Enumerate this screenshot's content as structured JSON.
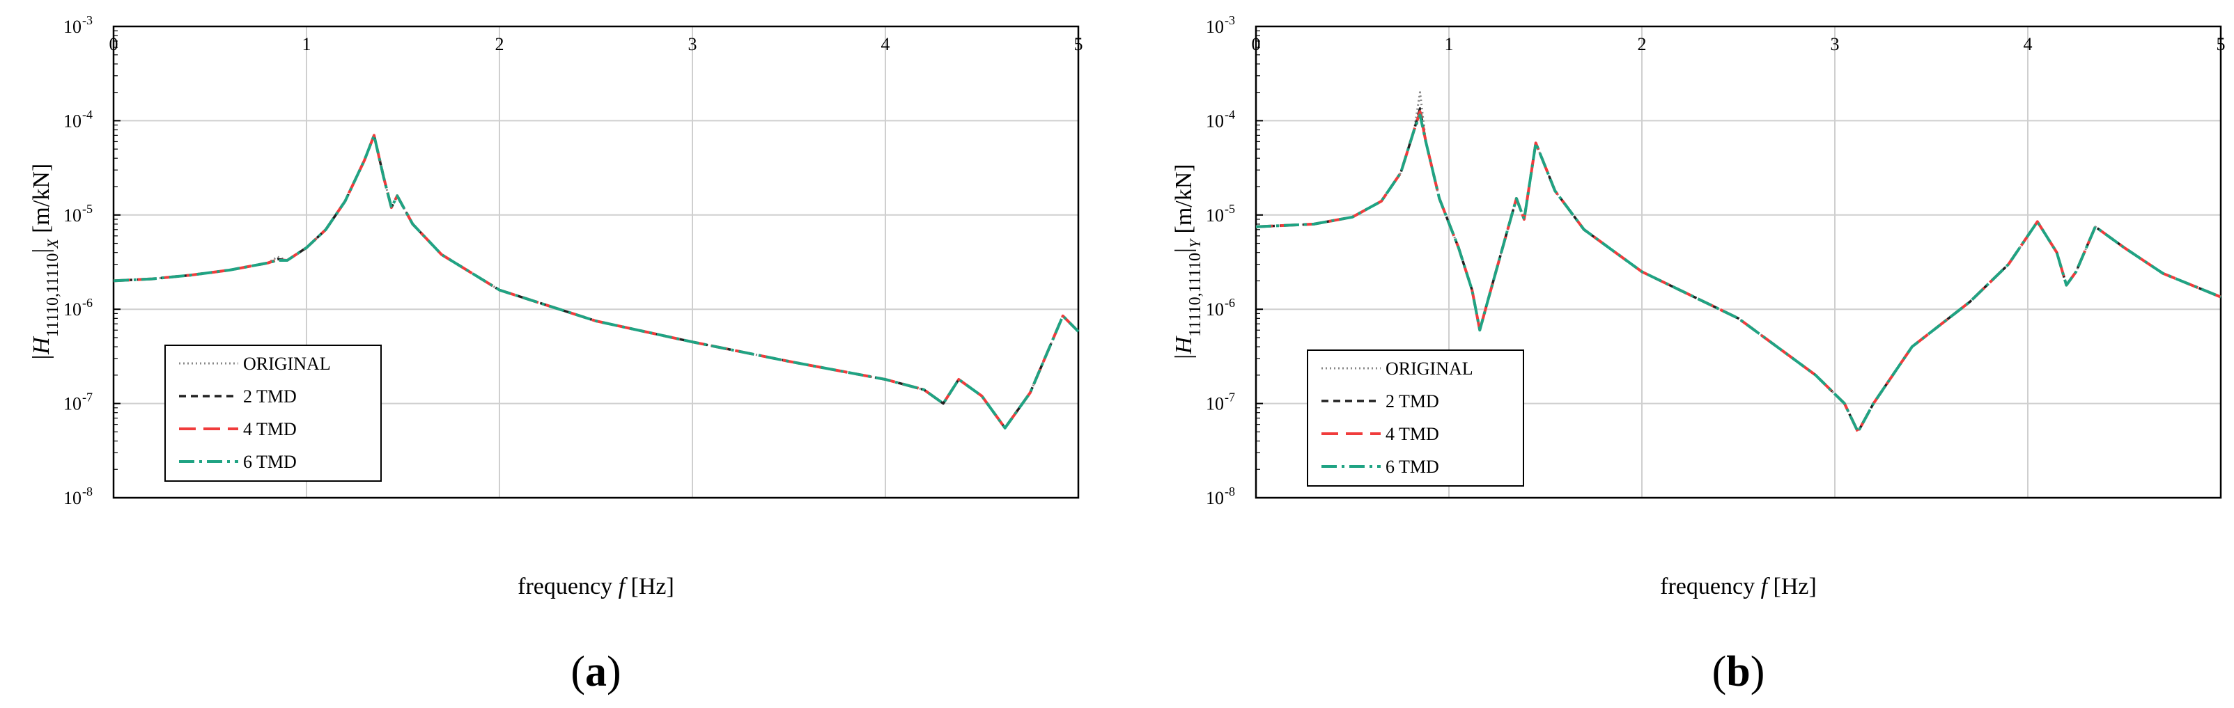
{
  "chart_data": [
    {
      "type": "line",
      "panel_label": "(a)",
      "panel_letter": "a",
      "ylabel_main": "|H",
      "ylabel_sub": "11110,11110",
      "ylabel_suffix": "|",
      "ylabel_dir": "X",
      "ylabel_unit": "[m/kN]",
      "xlabel": "frequency f [Hz]",
      "xlabel_prefix": "frequency ",
      "xlabel_var": "f",
      "xlabel_unit": " [Hz]",
      "xlim": [
        0,
        5
      ],
      "ylim": [
        1e-08,
        0.001
      ],
      "yscale": "log",
      "grid": true,
      "x_ticks": [
        "0",
        "1",
        "2",
        "3",
        "4",
        "5"
      ],
      "y_ticks": [
        {
          "base": "10",
          "exp": "-3"
        },
        {
          "base": "10",
          "exp": "-4"
        },
        {
          "base": "10",
          "exp": "-5"
        },
        {
          "base": "10",
          "exp": "-6"
        },
        {
          "base": "10",
          "exp": "-7"
        },
        {
          "base": "10",
          "exp": "-8"
        }
      ],
      "legend_position": "bottom-left",
      "series": [
        {
          "name": "ORIGINAL",
          "color": "#888888",
          "style": "dotted",
          "x": [
            0,
            0.2,
            0.4,
            0.6,
            0.8,
            0.85,
            0.9,
            1.0,
            1.1,
            1.2,
            1.3,
            1.35,
            1.4,
            1.44,
            1.47,
            1.55,
            1.7,
            2.0,
            2.5,
            3.0,
            3.5,
            4.0,
            4.2,
            4.3,
            4.38,
            4.5,
            4.62,
            4.75,
            4.92,
            5.0
          ],
          "y": [
            2e-06,
            2.1e-06,
            2.3e-06,
            2.6e-06,
            3.1e-06,
            3.6e-06,
            3.3e-06,
            4.5e-06,
            7e-06,
            1.4e-05,
            3.8e-05,
            7e-05,
            2.5e-05,
            1.2e-05,
            1.6e-05,
            8e-06,
            3.8e-06,
            1.6e-06,
            7.5e-07,
            4.5e-07,
            2.8e-07,
            1.8e-07,
            1.4e-07,
            1e-07,
            1.8e-07,
            1.2e-07,
            5.5e-08,
            1.3e-07,
            8.5e-07,
            5.8e-07
          ]
        },
        {
          "name": "2 TMD",
          "color": "#222222",
          "style": "dashed",
          "x": [
            0,
            0.2,
            0.4,
            0.6,
            0.8,
            0.85,
            0.9,
            1.0,
            1.1,
            1.2,
            1.3,
            1.35,
            1.4,
            1.44,
            1.47,
            1.55,
            1.7,
            2.0,
            2.5,
            3.0,
            3.5,
            4.0,
            4.2,
            4.3,
            4.38,
            4.5,
            4.62,
            4.75,
            4.92,
            5.0
          ],
          "y": [
            2e-06,
            2.1e-06,
            2.3e-06,
            2.6e-06,
            3.1e-06,
            3.4e-06,
            3.3e-06,
            4.5e-06,
            7e-06,
            1.4e-05,
            3.8e-05,
            7e-05,
            2.5e-05,
            1.2e-05,
            1.6e-05,
            8e-06,
            3.8e-06,
            1.6e-06,
            7.5e-07,
            4.5e-07,
            2.8e-07,
            1.8e-07,
            1.4e-07,
            1e-07,
            1.8e-07,
            1.2e-07,
            5.5e-08,
            1.3e-07,
            8.5e-07,
            5.8e-07
          ]
        },
        {
          "name": "4 TMD",
          "color": "#f03c3c",
          "style": "longdash",
          "x": [
            0,
            0.2,
            0.4,
            0.6,
            0.8,
            0.85,
            0.9,
            1.0,
            1.1,
            1.2,
            1.3,
            1.35,
            1.4,
            1.44,
            1.47,
            1.55,
            1.7,
            2.0,
            2.5,
            3.0,
            3.5,
            4.0,
            4.2,
            4.3,
            4.38,
            4.5,
            4.62,
            4.75,
            4.92,
            5.0
          ],
          "y": [
            2e-06,
            2.1e-06,
            2.3e-06,
            2.6e-06,
            3.1e-06,
            3.35e-06,
            3.3e-06,
            4.5e-06,
            7e-06,
            1.4e-05,
            3.8e-05,
            7e-05,
            2.5e-05,
            1.2e-05,
            1.6e-05,
            8e-06,
            3.8e-06,
            1.6e-06,
            7.5e-07,
            4.5e-07,
            2.8e-07,
            1.8e-07,
            1.4e-07,
            1e-07,
            1.8e-07,
            1.2e-07,
            5.5e-08,
            1.3e-07,
            8.5e-07,
            5.8e-07
          ]
        },
        {
          "name": "6 TMD",
          "color": "#1fa383",
          "style": "dashdot",
          "x": [
            0,
            0.2,
            0.4,
            0.6,
            0.8,
            0.85,
            0.9,
            1.0,
            1.1,
            1.2,
            1.3,
            1.35,
            1.4,
            1.44,
            1.47,
            1.55,
            1.7,
            2.0,
            2.5,
            3.0,
            3.5,
            4.0,
            4.2,
            4.3,
            4.38,
            4.5,
            4.62,
            4.75,
            4.92,
            5.0
          ],
          "y": [
            2e-06,
            2.1e-06,
            2.3e-06,
            2.6e-06,
            3.1e-06,
            3.3e-06,
            3.3e-06,
            4.5e-06,
            7e-06,
            1.4e-05,
            3.8e-05,
            7e-05,
            2.5e-05,
            1.2e-05,
            1.6e-05,
            8e-06,
            3.8e-06,
            1.6e-06,
            7.5e-07,
            4.5e-07,
            2.8e-07,
            1.8e-07,
            1.4e-07,
            1e-07,
            1.8e-07,
            1.2e-07,
            5.5e-08,
            1.3e-07,
            8.5e-07,
            5.8e-07
          ]
        }
      ]
    },
    {
      "type": "line",
      "panel_label": "(b)",
      "panel_letter": "b",
      "ylabel_main": "|H",
      "ylabel_sub": "11110,11110",
      "ylabel_suffix": "|",
      "ylabel_dir": "Y",
      "ylabel_unit": "[m/kN]",
      "xlabel": "frequency f [Hz]",
      "xlabel_prefix": "frequency ",
      "xlabel_var": "f",
      "xlabel_unit": " [Hz]",
      "xlim": [
        0,
        5
      ],
      "ylim": [
        1e-08,
        0.001
      ],
      "yscale": "log",
      "grid": true,
      "x_ticks": [
        "0",
        "1",
        "2",
        "3",
        "4",
        "5"
      ],
      "y_ticks": [
        {
          "base": "10",
          "exp": "-3"
        },
        {
          "base": "10",
          "exp": "-4"
        },
        {
          "base": "10",
          "exp": "-5"
        },
        {
          "base": "10",
          "exp": "-6"
        },
        {
          "base": "10",
          "exp": "-7"
        },
        {
          "base": "10",
          "exp": "-8"
        }
      ],
      "legend_position": "bottom-left",
      "series": [
        {
          "name": "ORIGINAL",
          "color": "#888888",
          "style": "dotted",
          "x": [
            0,
            0.3,
            0.5,
            0.65,
            0.75,
            0.82,
            0.85,
            0.88,
            0.95,
            1.05,
            1.12,
            1.16,
            1.2,
            1.3,
            1.35,
            1.39,
            1.45,
            1.55,
            1.7,
            2.0,
            2.5,
            2.9,
            3.05,
            3.12,
            3.2,
            3.4,
            3.7,
            3.9,
            4.05,
            4.15,
            4.2,
            4.25,
            4.35,
            4.5,
            4.7,
            5.0
          ],
          "y": [
            7.5e-06,
            8e-06,
            9.5e-06,
            1.4e-05,
            2.8e-05,
            8e-05,
            0.0002,
            6e-05,
            1.5e-05,
            4.5e-06,
            1.6e-06,
            6e-07,
            1.2e-06,
            6.5e-06,
            1.5e-05,
            9e-06,
            5.8e-05,
            1.8e-05,
            7e-06,
            2.5e-06,
            8e-07,
            2e-07,
            1e-07,
            5e-08,
            1e-07,
            4e-07,
            1.2e-06,
            3e-06,
            8.5e-06,
            4e-06,
            1.8e-06,
            2.5e-06,
            7.5e-06,
            4.5e-06,
            2.4e-06,
            1.35e-06
          ]
        },
        {
          "name": "2 TMD",
          "color": "#222222",
          "style": "dashed",
          "x": [
            0,
            0.3,
            0.5,
            0.65,
            0.75,
            0.82,
            0.85,
            0.88,
            0.95,
            1.05,
            1.12,
            1.16,
            1.2,
            1.3,
            1.35,
            1.39,
            1.45,
            1.55,
            1.7,
            2.0,
            2.5,
            2.9,
            3.05,
            3.12,
            3.2,
            3.4,
            3.7,
            3.9,
            4.05,
            4.15,
            4.2,
            4.25,
            4.35,
            4.5,
            4.7,
            5.0
          ],
          "y": [
            7.5e-06,
            8e-06,
            9.5e-06,
            1.4e-05,
            2.8e-05,
            8e-05,
            0.000135,
            6e-05,
            1.5e-05,
            4.5e-06,
            1.6e-06,
            6e-07,
            1.2e-06,
            6.5e-06,
            1.5e-05,
            9e-06,
            5.8e-05,
            1.8e-05,
            7e-06,
            2.5e-06,
            8e-07,
            2e-07,
            1e-07,
            5e-08,
            1e-07,
            4e-07,
            1.2e-06,
            3e-06,
            8.5e-06,
            4e-06,
            1.8e-06,
            2.5e-06,
            7.5e-06,
            4.5e-06,
            2.4e-06,
            1.35e-06
          ]
        },
        {
          "name": "4 TMD",
          "color": "#f03c3c",
          "style": "longdash",
          "x": [
            0,
            0.3,
            0.5,
            0.65,
            0.75,
            0.82,
            0.85,
            0.88,
            0.95,
            1.05,
            1.12,
            1.16,
            1.2,
            1.3,
            1.35,
            1.39,
            1.45,
            1.55,
            1.7,
            2.0,
            2.5,
            2.9,
            3.05,
            3.12,
            3.2,
            3.4,
            3.7,
            3.9,
            4.05,
            4.15,
            4.2,
            4.25,
            4.35,
            4.5,
            4.7,
            5.0
          ],
          "y": [
            7.5e-06,
            8e-06,
            9.5e-06,
            1.4e-05,
            2.8e-05,
            8e-05,
            0.000125,
            6e-05,
            1.5e-05,
            4.5e-06,
            1.6e-06,
            6e-07,
            1.2e-06,
            6.5e-06,
            1.5e-05,
            9e-06,
            5.8e-05,
            1.8e-05,
            7e-06,
            2.5e-06,
            8e-07,
            2e-07,
            1e-07,
            5e-08,
            1e-07,
            4e-07,
            1.2e-06,
            3e-06,
            8.5e-06,
            4e-06,
            1.8e-06,
            2.5e-06,
            7.5e-06,
            4.5e-06,
            2.4e-06,
            1.35e-06
          ]
        },
        {
          "name": "6 TMD",
          "color": "#1fa383",
          "style": "dashdot",
          "x": [
            0,
            0.3,
            0.5,
            0.65,
            0.75,
            0.82,
            0.85,
            0.88,
            0.95,
            1.05,
            1.12,
            1.16,
            1.2,
            1.3,
            1.35,
            1.39,
            1.45,
            1.55,
            1.7,
            2.0,
            2.5,
            2.9,
            3.05,
            3.12,
            3.2,
            3.4,
            3.7,
            3.9,
            4.05,
            4.15,
            4.2,
            4.25,
            4.35,
            4.5,
            4.7,
            5.0
          ],
          "y": [
            7.5e-06,
            8e-06,
            9.5e-06,
            1.4e-05,
            2.8e-05,
            8e-05,
            0.000115,
            6e-05,
            1.5e-05,
            4.5e-06,
            1.6e-06,
            6e-07,
            1.2e-06,
            6.5e-06,
            1.5e-05,
            9e-06,
            5.8e-05,
            1.8e-05,
            7e-06,
            2.5e-06,
            8e-07,
            2e-07,
            1e-07,
            5e-08,
            1e-07,
            4e-07,
            1.2e-06,
            3e-06,
            8.5e-06,
            4e-06,
            1.8e-06,
            2.5e-06,
            7.5e-06,
            4.5e-06,
            2.4e-06,
            1.35e-06
          ]
        }
      ]
    }
  ]
}
